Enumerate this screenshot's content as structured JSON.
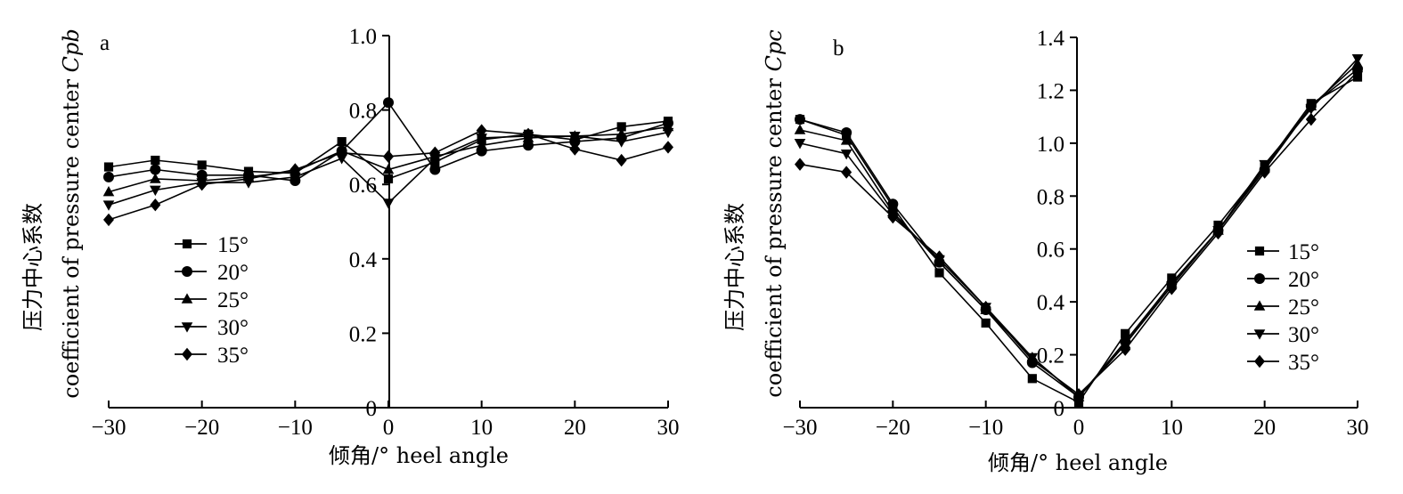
{
  "chart_data": [
    {
      "type": "line",
      "panel_label": "a",
      "xlabel": "倾角/° heel angle",
      "ylabel": "压力中心系数",
      "ylabel2": "coefficient of pressure center ",
      "ylabel2_var": "Cpb",
      "x": [
        -30,
        -25,
        -20,
        -15,
        -10,
        -5,
        0,
        5,
        10,
        15,
        20,
        25,
        30
      ],
      "xlim": [
        -30,
        30
      ],
      "ylim": [
        0,
        1.0
      ],
      "xticks": [
        "−30",
        "−20",
        "−10",
        "0",
        "10",
        "20",
        "30"
      ],
      "yticks": [
        "0",
        "0.2",
        "0.4",
        "0.6",
        "0.8",
        "1.0"
      ],
      "legend_position": "left",
      "series": [
        {
          "name": "15°",
          "marker": "square",
          "values": [
            0.647,
            0.665,
            0.652,
            0.635,
            0.63,
            0.715,
            0.615,
            0.66,
            0.72,
            0.735,
            0.72,
            0.755,
            0.77
          ]
        },
        {
          "name": "20°",
          "marker": "circle",
          "values": [
            0.62,
            0.64,
            0.625,
            0.625,
            0.61,
            0.69,
            0.82,
            0.64,
            0.69,
            0.705,
            0.715,
            0.725,
            0.765
          ]
        },
        {
          "name": "25°",
          "marker": "triangle-up",
          "values": [
            0.58,
            0.615,
            0.61,
            0.62,
            0.635,
            0.69,
            0.64,
            0.675,
            0.705,
            0.725,
            0.73,
            0.735,
            0.755
          ]
        },
        {
          "name": "30°",
          "marker": "triangle-down",
          "values": [
            0.545,
            0.585,
            0.605,
            0.605,
            0.62,
            0.67,
            0.55,
            0.67,
            0.725,
            0.73,
            0.73,
            0.715,
            0.74
          ]
        },
        {
          "name": "35°",
          "marker": "diamond",
          "values": [
            0.505,
            0.545,
            0.6,
            0.615,
            0.64,
            0.685,
            0.675,
            0.685,
            0.745,
            0.735,
            0.695,
            0.665,
            0.7
          ]
        }
      ]
    },
    {
      "type": "line",
      "panel_label": "b",
      "xlabel": "倾角/° heel angle",
      "ylabel": "压力中心系数",
      "ylabel2": "coefficient of pressure center ",
      "ylabel2_var": "Cpc",
      "x": [
        -30,
        -25,
        -20,
        -15,
        -10,
        -5,
        0,
        5,
        10,
        15,
        20,
        25,
        30
      ],
      "xlim": [
        -30,
        30
      ],
      "ylim": [
        0,
        1.4
      ],
      "xticks": [
        "−30",
        "−20",
        "−10",
        "0",
        "10",
        "20",
        "30"
      ],
      "yticks": [
        "0",
        "0.2",
        "0.4",
        "0.6",
        "0.8",
        "1.0",
        "1.2",
        "1.4"
      ],
      "legend_position": "right",
      "series": [
        {
          "name": "15°",
          "marker": "square",
          "values": [
            1.09,
            1.03,
            0.76,
            0.51,
            0.32,
            0.11,
            0.02,
            0.28,
            0.49,
            0.69,
            0.91,
            1.15,
            1.25
          ]
        },
        {
          "name": "20°",
          "marker": "circle",
          "values": [
            1.09,
            1.04,
            0.77,
            0.55,
            0.37,
            0.17,
            0.04,
            0.25,
            0.47,
            0.67,
            0.9,
            1.14,
            1.28
          ]
        },
        {
          "name": "25°",
          "marker": "triangle-up",
          "values": [
            1.05,
            1.01,
            0.74,
            0.55,
            0.37,
            0.19,
            0.04,
            0.24,
            0.47,
            0.67,
            0.91,
            1.14,
            1.3
          ]
        },
        {
          "name": "30°",
          "marker": "triangle-down",
          "values": [
            1.0,
            0.96,
            0.73,
            0.56,
            0.38,
            0.19,
            0.04,
            0.24,
            0.46,
            0.67,
            0.92,
            1.13,
            1.32
          ]
        },
        {
          "name": "35°",
          "marker": "diamond",
          "values": [
            0.92,
            0.89,
            0.72,
            0.57,
            0.38,
            0.18,
            0.05,
            0.22,
            0.45,
            0.66,
            0.89,
            1.09,
            1.27
          ]
        }
      ]
    }
  ]
}
